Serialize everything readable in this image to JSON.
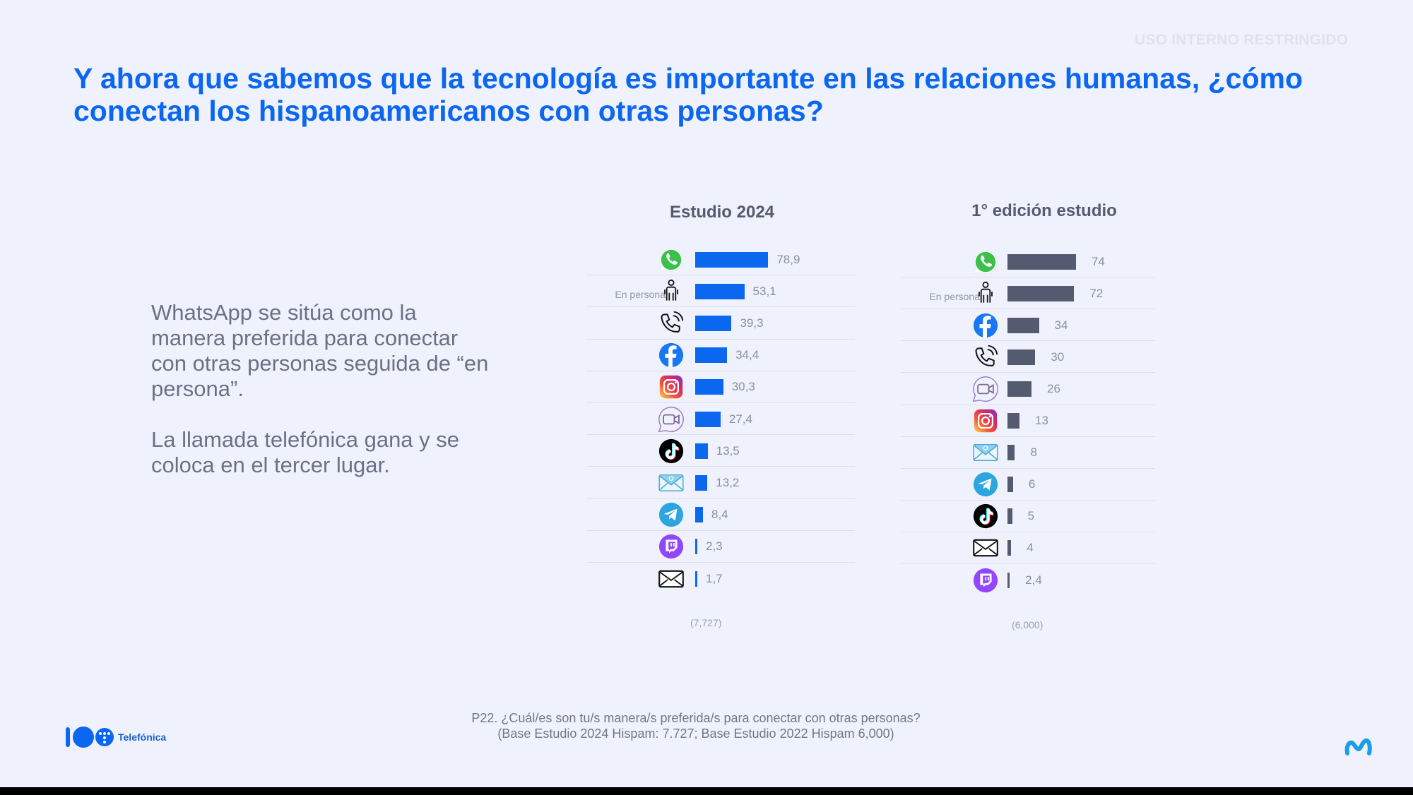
{
  "header": {
    "classification": "USO INTERNO RESTRINGIDO",
    "title": "Y ahora que sabemos que la tecnología es importante en las relaciones humanas, ¿cómo conectan los hispanoamericanos con otras personas?"
  },
  "body": {
    "paragraphs": [
      "WhatsApp se sitúa como la manera preferida para conectar con otras personas seguida de “en persona”.",
      "La llamada telefónica gana y se coloca en el tercer lugar."
    ]
  },
  "footnote": {
    "line1": "P22. ¿Cuál/es son tu/s manera/s preferida/s para conectar con otras personas?",
    "line2": "(Base Estudio 2024 Hispam: 7.727; Base Estudio 2022 Hispam 6,000)"
  },
  "logos": {
    "telefonica": "Telefónica",
    "movistar": "movistar-logo"
  },
  "colors": {
    "title": "#0b66f0",
    "bar_2024": "#0b66f0",
    "bar_first_edition": "#545b70"
  },
  "chart_data": [
    {
      "type": "bar",
      "orientation": "horizontal",
      "title": "Estudio 2024",
      "base": "(7,727)",
      "categories": [
        "WhatsApp",
        "En persona",
        "Llamada telefónica",
        "Facebook",
        "Instagram",
        "Videollamada",
        "TikTok",
        "Email",
        "Telegram",
        "Twitch",
        "Carta / correo"
      ],
      "icons": [
        "whatsapp-icon",
        "person-icon",
        "phone-call-icon",
        "facebook-icon",
        "instagram-icon",
        "video-call-icon",
        "tiktok-icon",
        "email-at-icon",
        "telegram-icon",
        "twitch-icon",
        "envelope-icon"
      ],
      "row_labels": [
        "",
        "En persona",
        "",
        "",
        "",
        "",
        "",
        "",
        "",
        "",
        ""
      ],
      "values": [
        78.9,
        53.1,
        39.3,
        34.4,
        30.3,
        27.4,
        13.5,
        13.2,
        8.4,
        2.3,
        1.7
      ],
      "value_labels": [
        "78,9",
        "53,1",
        "39,3",
        "34,4",
        "30,3",
        "27,4",
        "13,5",
        "13,2",
        "8,4",
        "2,3",
        "1,7"
      ],
      "xlim": [
        0,
        100
      ],
      "grid": false
    },
    {
      "type": "bar",
      "orientation": "horizontal",
      "title": "1° edición estudio",
      "base": "(6,000)",
      "categories": [
        "WhatsApp",
        "En persona",
        "Facebook",
        "Llamada telefónica",
        "Videollamada",
        "Instagram",
        "Email",
        "Telegram",
        "TikTok",
        "Carta / correo",
        "Twitch"
      ],
      "icons": [
        "whatsapp-icon",
        "person-icon",
        "facebook-icon",
        "phone-call-icon",
        "video-call-icon",
        "instagram-icon",
        "email-at-icon",
        "telegram-icon",
        "tiktok-icon",
        "envelope-icon",
        "twitch-icon"
      ],
      "row_labels": [
        "",
        "En persona",
        "",
        "",
        "",
        "",
        "",
        "",
        "",
        "",
        ""
      ],
      "values": [
        74,
        72,
        34,
        30,
        26,
        13,
        8,
        6,
        5,
        4,
        2.4
      ],
      "value_labels": [
        "74",
        "72",
        "34",
        "30",
        "26",
        "13",
        "8",
        "6",
        "5",
        "4",
        "2,4"
      ],
      "xlim": [
        0,
        100
      ],
      "grid": false
    }
  ]
}
